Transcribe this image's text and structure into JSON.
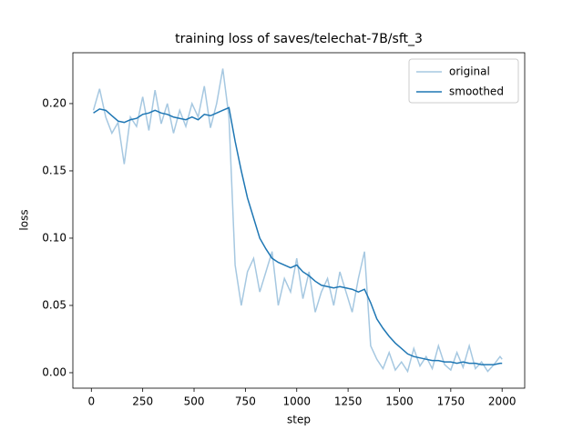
{
  "chart_data": {
    "type": "line",
    "title": "training loss of saves/telechat-7B/sft_3",
    "xlabel": "step",
    "ylabel": "loss",
    "x": [
      10,
      40,
      70,
      100,
      130,
      160,
      190,
      220,
      250,
      280,
      310,
      340,
      370,
      400,
      430,
      460,
      490,
      520,
      550,
      580,
      610,
      640,
      670,
      700,
      730,
      760,
      790,
      820,
      850,
      880,
      910,
      940,
      970,
      1000,
      1030,
      1060,
      1090,
      1120,
      1150,
      1180,
      1210,
      1240,
      1270,
      1300,
      1330,
      1360,
      1390,
      1420,
      1450,
      1480,
      1510,
      1540,
      1570,
      1600,
      1630,
      1660,
      1690,
      1720,
      1750,
      1780,
      1810,
      1840,
      1870,
      1900,
      1930,
      1960,
      1990,
      2000
    ],
    "series": [
      {
        "name": "original",
        "color": "#a6c8e1",
        "values": [
          0.195,
          0.211,
          0.19,
          0.178,
          0.186,
          0.155,
          0.19,
          0.183,
          0.205,
          0.18,
          0.21,
          0.185,
          0.2,
          0.178,
          0.195,
          0.183,
          0.2,
          0.19,
          0.213,
          0.182,
          0.2,
          0.226,
          0.19,
          0.08,
          0.05,
          0.075,
          0.085,
          0.06,
          0.075,
          0.09,
          0.05,
          0.07,
          0.06,
          0.085,
          0.055,
          0.075,
          0.045,
          0.06,
          0.07,
          0.05,
          0.075,
          0.06,
          0.045,
          0.07,
          0.09,
          0.02,
          0.01,
          0.003,
          0.015,
          0.002,
          0.008,
          0.001,
          0.018,
          0.005,
          0.012,
          0.003,
          0.02,
          0.006,
          0.002,
          0.015,
          0.004,
          0.02,
          0.003,
          0.008,
          0.001,
          0.006,
          0.012,
          0.01
        ]
      },
      {
        "name": "smoothed",
        "color": "#1f77b4",
        "values": [
          0.193,
          0.196,
          0.195,
          0.191,
          0.187,
          0.186,
          0.188,
          0.189,
          0.192,
          0.193,
          0.195,
          0.193,
          0.192,
          0.19,
          0.189,
          0.188,
          0.19,
          0.188,
          0.192,
          0.191,
          0.193,
          0.195,
          0.197,
          0.172,
          0.15,
          0.13,
          0.115,
          0.1,
          0.092,
          0.085,
          0.082,
          0.08,
          0.078,
          0.08,
          0.075,
          0.072,
          0.068,
          0.065,
          0.064,
          0.063,
          0.064,
          0.063,
          0.062,
          0.06,
          0.062,
          0.052,
          0.04,
          0.033,
          0.027,
          0.022,
          0.018,
          0.014,
          0.012,
          0.011,
          0.01,
          0.009,
          0.009,
          0.008,
          0.008,
          0.007,
          0.008,
          0.007,
          0.007,
          0.006,
          0.006,
          0.006,
          0.007,
          0.007
        ]
      }
    ],
    "xlim": [
      -90,
      2110
    ],
    "ylim": [
      -0.0115,
      0.2378
    ],
    "xticks": [
      0,
      250,
      500,
      750,
      1000,
      1250,
      1500,
      1750,
      2000
    ],
    "yticks": [
      {
        "value": 0,
        "label": "0.00"
      },
      {
        "value": 0.05,
        "label": "0.05"
      },
      {
        "value": 0.1,
        "label": "0.10"
      },
      {
        "value": 0.15,
        "label": "0.15"
      },
      {
        "value": 0.2,
        "label": "0.20"
      }
    ],
    "legend": "upper right"
  }
}
